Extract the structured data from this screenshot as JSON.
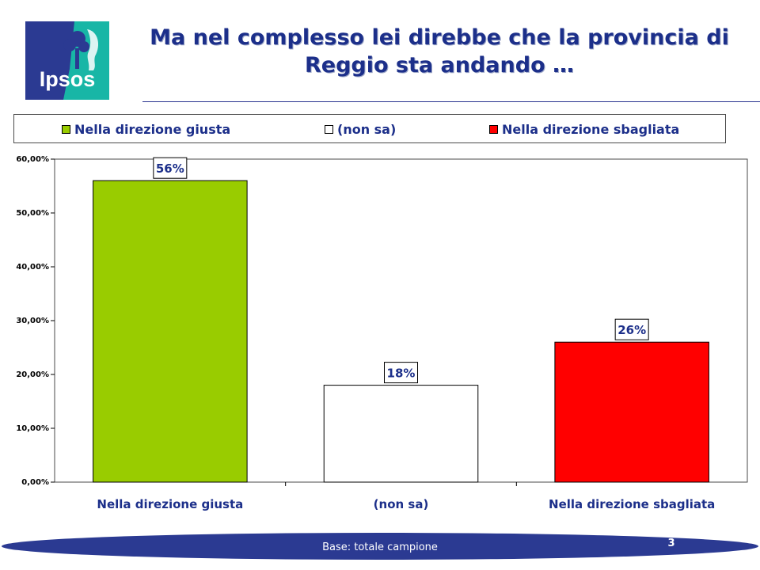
{
  "logo": {
    "text": "Ipsos",
    "colors": {
      "left": "#2b3a92",
      "right": "#18b6a6"
    }
  },
  "header": {
    "title_line1": "Ma nel complesso lei direbbe che la provincia di",
    "title_line2": "Reggio sta andando …"
  },
  "chart_data": {
    "type": "bar",
    "categories": [
      "Nella direzione giusta",
      "(non sa)",
      "Nella direzione sbagliata"
    ],
    "values": [
      56,
      18,
      26
    ],
    "data_labels": [
      "56%",
      "18%",
      "26%"
    ],
    "colors": [
      "#99cc00",
      "#ffffff",
      "#ff0000"
    ],
    "legend": [
      "Nella direzione giusta",
      "(non sa)",
      "Nella direzione sbagliata"
    ],
    "legend_position": "top",
    "ylim": [
      0,
      60
    ],
    "yticks": [
      "0,00%",
      "10,00%",
      "20,00%",
      "30,00%",
      "40,00%",
      "50,00%",
      "60,00%"
    ],
    "grid": false,
    "title": "",
    "xlabel": "",
    "ylabel": ""
  },
  "footer": {
    "base_text": "Base: totale campione",
    "page_number": "3",
    "band_color": "#2b3a92"
  }
}
